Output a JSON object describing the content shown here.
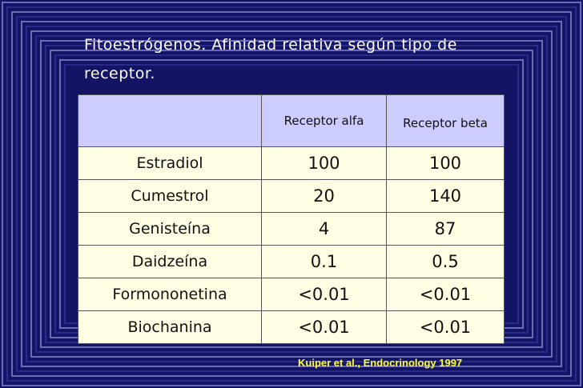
{
  "title": "Fitoestrógenos. Afinidad relativa según tipo de receptor.",
  "table": {
    "header": [
      "",
      "Receptor alfa",
      "Receptor beta"
    ],
    "rows": [
      [
        "Estradiol",
        "100",
        "100"
      ],
      [
        "Cumestrol",
        "20",
        "140"
      ],
      [
        "Genisteína",
        "4",
        "87"
      ],
      [
        "Daidzeína",
        "0.1",
        "0.5"
      ],
      [
        "Formononetina",
        "<0.01",
        "<0.01"
      ],
      [
        "Biochanina",
        "<0.01",
        "<0.01"
      ]
    ]
  },
  "citation": "Kuiper et al., Endocrinology 1997"
}
